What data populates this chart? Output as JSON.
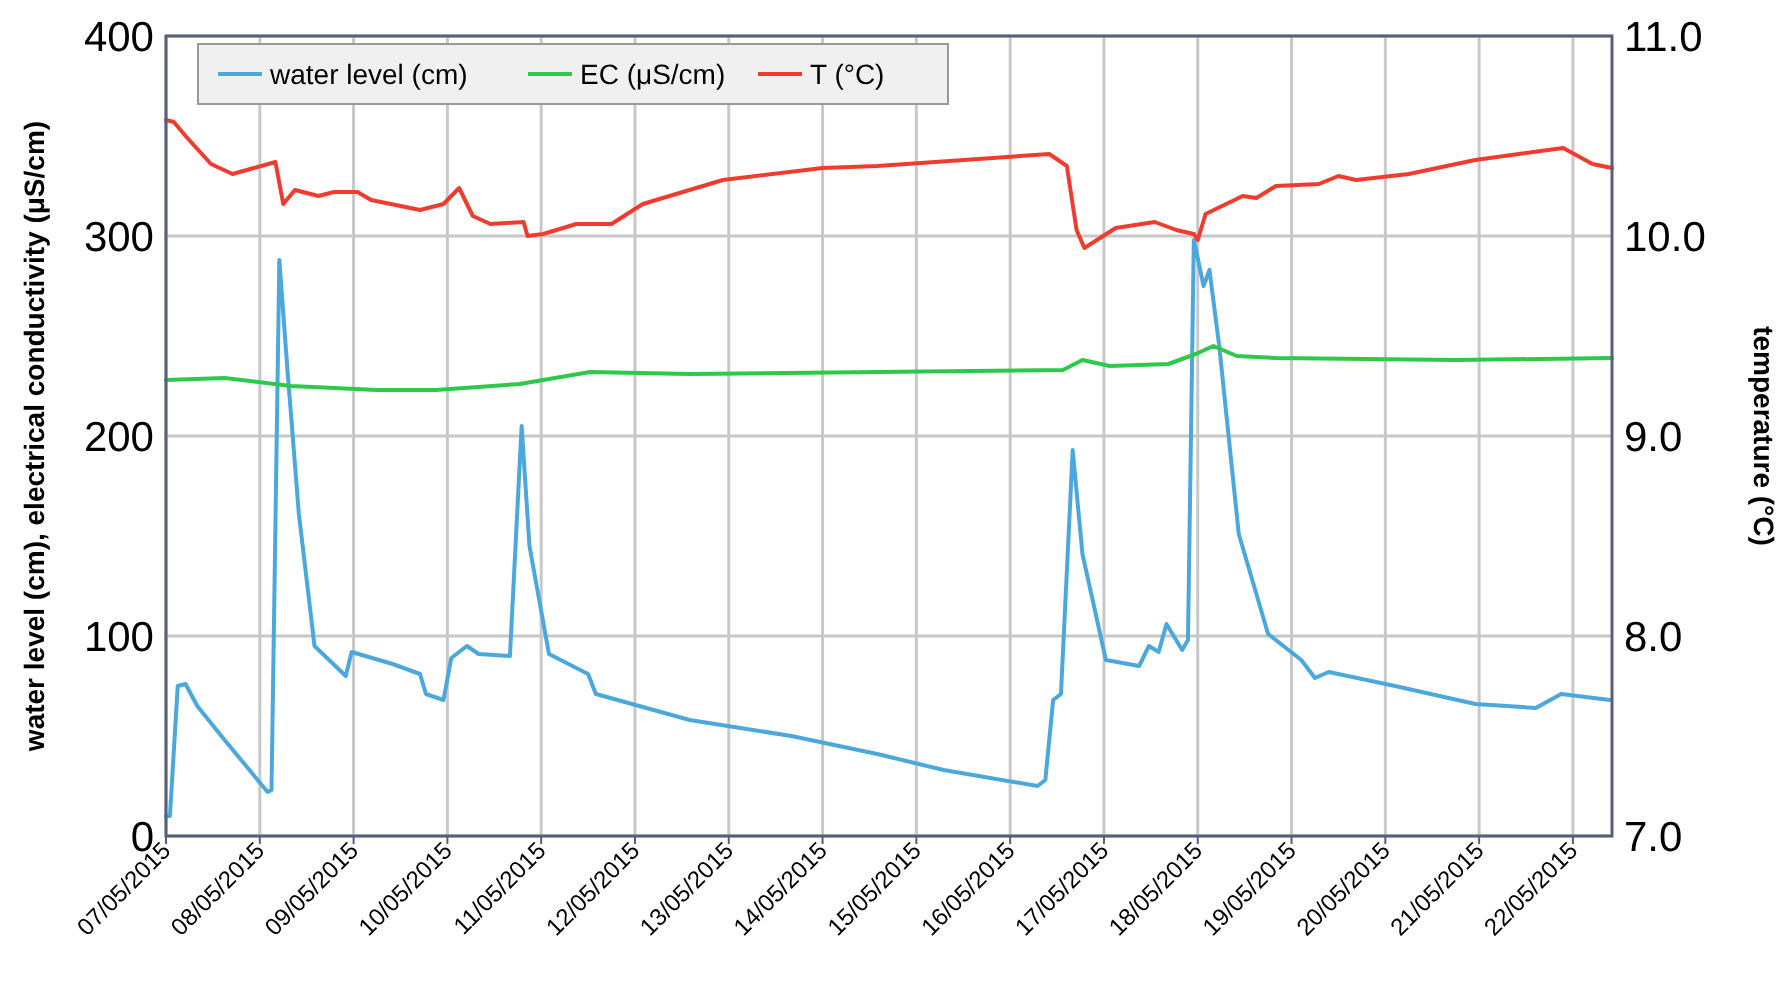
{
  "chart_data": {
    "type": "line",
    "ylabel": "water level (cm), electrical conductivity (μS/cm)",
    "y2label": "temperature  (°C)",
    "xlim": [
      "2015-05-07T00:00",
      "2015-05-22T10:00"
    ],
    "xticks": [
      {
        "value": "2015-05-07",
        "label": "07/05/2015"
      },
      {
        "value": "2015-05-08",
        "label": "08/05/2015"
      },
      {
        "value": "2015-05-09",
        "label": "09/05/2015"
      },
      {
        "value": "2015-05-10",
        "label": "10/05/2015"
      },
      {
        "value": "2015-05-11",
        "label": "11/05/2015"
      },
      {
        "value": "2015-05-12",
        "label": "12/05/2015"
      },
      {
        "value": "2015-05-13",
        "label": "13/05/2015"
      },
      {
        "value": "2015-05-14",
        "label": "14/05/2015"
      },
      {
        "value": "2015-05-15",
        "label": "15/05/2015"
      },
      {
        "value": "2015-05-16",
        "label": "16/05/2015"
      },
      {
        "value": "2015-05-17",
        "label": "17/05/2015"
      },
      {
        "value": "2015-05-18",
        "label": "18/05/2015"
      },
      {
        "value": "2015-05-19",
        "label": "19/05/2015"
      },
      {
        "value": "2015-05-20",
        "label": "20/05/2015"
      },
      {
        "value": "2015-05-21",
        "label": "21/05/2015"
      },
      {
        "value": "2015-05-22",
        "label": "22/05/2015"
      }
    ],
    "ylim": [
      0,
      400
    ],
    "yticks": [
      0,
      100,
      200,
      300,
      400
    ],
    "y2lim": [
      7,
      11
    ],
    "y2ticks": [
      {
        "value": 7,
        "label": "7.0"
      },
      {
        "value": 8,
        "label": "8.0"
      },
      {
        "value": 9,
        "label": "9.0"
      },
      {
        "value": 10,
        "label": "10.0"
      },
      {
        "value": 11,
        "label": "11.0"
      }
    ],
    "grid": true,
    "legend": "top left",
    "marker": "none",
    "line_style": "solid",
    "series": [
      {
        "name": "water level (cm)",
        "color": "#4aa8dc",
        "x": [
          "2015-05-07T00:00",
          "2015-05-07T01:00",
          "2015-05-07T03:00",
          "2015-05-07T05:00",
          "2015-05-07T08:00",
          "2015-05-07T15:00",
          "2015-05-08T02:00",
          "2015-05-08T03:00",
          "2015-05-08T05:00",
          "2015-05-08T07:00",
          "2015-05-08T10:00",
          "2015-05-08T14:00",
          "2015-05-08T22:00",
          "2015-05-08T23:30",
          "2015-05-09T10:00",
          "2015-05-09T17:00",
          "2015-05-09T18:30",
          "2015-05-09T23:00",
          "2015-05-10T01:00",
          "2015-05-10T05:00",
          "2015-05-10T08:00",
          "2015-05-10T16:00",
          "2015-05-10T19:00",
          "2015-05-10T21:00",
          "2015-05-11T02:00",
          "2015-05-11T12:00",
          "2015-05-11T14:00",
          "2015-05-12T14:00",
          "2015-05-13T16:00",
          "2015-05-14T14:00",
          "2015-05-15T07:00",
          "2015-05-16T07:00",
          "2015-05-16T09:00",
          "2015-05-16T11:00",
          "2015-05-16T13:00",
          "2015-05-16T16:00",
          "2015-05-16T18:30",
          "2015-05-17T00:30",
          "2015-05-17T09:00",
          "2015-05-17T11:30",
          "2015-05-17T14:00",
          "2015-05-17T16:00",
          "2015-05-17T20:00",
          "2015-05-17T21:30",
          "2015-05-17T23:00",
          "2015-05-18T01:30",
          "2015-05-18T03:00",
          "2015-05-18T05:30",
          "2015-05-18T10:30",
          "2015-05-18T18:00",
          "2015-05-19T02:30",
          "2015-05-19T06:00",
          "2015-05-19T09:30",
          "2015-05-20T02:30",
          "2015-05-20T23:00",
          "2015-05-21T14:30",
          "2015-05-21T21:00",
          "2015-05-22T09:30"
        ],
        "values": [
          10,
          10,
          75,
          76,
          65,
          48,
          22,
          23,
          288,
          235,
          161,
          95,
          80,
          92,
          86,
          81,
          71,
          68,
          89,
          95,
          91,
          90,
          205,
          145,
          91,
          81,
          71,
          58,
          50,
          41,
          33,
          25,
          28,
          68,
          71,
          193,
          141,
          88,
          85,
          95,
          92,
          106,
          93,
          98,
          298,
          275,
          283,
          245,
          151,
          101,
          88,
          79,
          82,
          75,
          66,
          64,
          71,
          68
        ]
      },
      {
        "name": "EC (μS/cm)",
        "color": "#2ec84a",
        "x": [
          "2015-05-07T00:00",
          "2015-05-07T15:00",
          "2015-05-08T08:00",
          "2015-05-09T06:00",
          "2015-05-09T21:00",
          "2015-05-10T18:30",
          "2015-05-11T12:30",
          "2015-05-12T14:00",
          "2015-05-14T14:00",
          "2015-05-16T13:30",
          "2015-05-16T18:30",
          "2015-05-17T01:30",
          "2015-05-17T16:30",
          "2015-05-17T23:30",
          "2015-05-18T04:00",
          "2015-05-18T10:00",
          "2015-05-18T20:00",
          "2015-05-20T18:00",
          "2015-05-22T10:00"
        ],
        "values": [
          228,
          229,
          225,
          223,
          223,
          226,
          232,
          231,
          232,
          233,
          238,
          235,
          236,
          241,
          245,
          240,
          239,
          238,
          239
        ]
      },
      {
        "name": "T (°C)",
        "color": "#f03c2e",
        "axis": "y2",
        "x": [
          "2015-05-07T00:00",
          "2015-05-07T02:00",
          "2015-05-07T05:00",
          "2015-05-07T11:30",
          "2015-05-07T17:00",
          "2015-05-08T04:00",
          "2015-05-08T06:00",
          "2015-05-08T09:00",
          "2015-05-08T15:00",
          "2015-05-08T19:00",
          "2015-05-09T01:00",
          "2015-05-09T04:30",
          "2015-05-09T17:00",
          "2015-05-09T23:00",
          "2015-05-10T03:00",
          "2015-05-10T06:30",
          "2015-05-10T11:00",
          "2015-05-10T19:30",
          "2015-05-10T20:30",
          "2015-05-11T00:30",
          "2015-05-11T09:00",
          "2015-05-11T18:00",
          "2015-05-12T02:00",
          "2015-05-12T22:30",
          "2015-05-14T00:00",
          "2015-05-14T14:00",
          "2015-05-16T10:00",
          "2015-05-16T14:30",
          "2015-05-16T17:00",
          "2015-05-16T19:00",
          "2015-05-17T03:00",
          "2015-05-17T13:00",
          "2015-05-17T18:30",
          "2015-05-17T23:00",
          "2015-05-18T00:00",
          "2015-05-18T02:00",
          "2015-05-18T11:30",
          "2015-05-18T15:00",
          "2015-05-18T20:00",
          "2015-05-19T07:00",
          "2015-05-19T12:00",
          "2015-05-19T16:30",
          "2015-05-20T06:00",
          "2015-05-20T23:00",
          "2015-05-21T21:30",
          "2015-05-22T05:00",
          "2015-05-22T10:00"
        ],
        "values": [
          10.58,
          10.57,
          10.5,
          10.36,
          10.31,
          10.37,
          10.16,
          10.23,
          10.2,
          10.22,
          10.22,
          10.18,
          10.13,
          10.16,
          10.24,
          10.1,
          10.06,
          10.07,
          10,
          10.01,
          10.06,
          10.06,
          10.16,
          10.28,
          10.34,
          10.35,
          10.41,
          10.35,
          10.03,
          9.94,
          10.04,
          10.07,
          10.03,
          10.01,
          9.98,
          10.11,
          10.2,
          10.19,
          10.25,
          10.26,
          10.3,
          10.28,
          10.31,
          10.38,
          10.44,
          10.36,
          10.34
        ]
      }
    ]
  }
}
